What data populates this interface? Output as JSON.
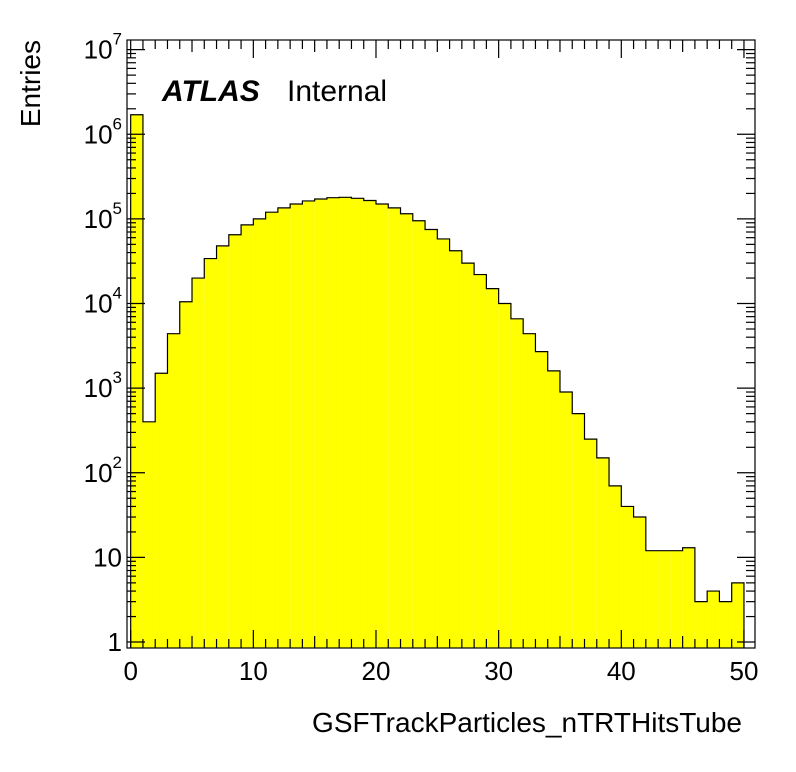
{
  "chart_data": {
    "type": "bar",
    "histogram": true,
    "title": "",
    "xlabel": "GSFTrackParticles_nTRTHitsTube",
    "ylabel": "Entries",
    "label_bold": "ATLAS",
    "label_normal": "Internal",
    "xlim": [
      -0.3,
      50.9
    ],
    "ylim": [
      0.85,
      13000000
    ],
    "yscale": "log",
    "fill_color": "#ffff00",
    "line_color": "#000000",
    "x_tick_labels": [
      "0",
      "10",
      "20",
      "30",
      "40",
      "50"
    ],
    "x_tick_values": [
      0,
      10,
      20,
      30,
      40,
      50
    ],
    "y_tick_labels": [
      {
        "value": 1,
        "base": "1",
        "exp": ""
      },
      {
        "value": 10,
        "base": "10",
        "exp": ""
      },
      {
        "value": 100,
        "base": "10",
        "exp": "2"
      },
      {
        "value": 1000,
        "base": "10",
        "exp": "3"
      },
      {
        "value": 10000,
        "base": "10",
        "exp": "4"
      },
      {
        "value": 100000,
        "base": "10",
        "exp": "5"
      },
      {
        "value": 1000000,
        "base": "10",
        "exp": "6"
      },
      {
        "value": 10000000,
        "base": "10",
        "exp": "7"
      }
    ],
    "bin_edges": [
      0,
      1,
      2,
      3,
      4,
      5,
      6,
      7,
      8,
      9,
      10,
      11,
      12,
      13,
      14,
      15,
      16,
      17,
      18,
      19,
      20,
      21,
      22,
      23,
      24,
      25,
      26,
      27,
      28,
      29,
      30,
      31,
      32,
      33,
      34,
      35,
      36,
      37,
      38,
      39,
      40,
      41,
      42,
      43,
      44,
      45,
      46,
      47,
      48,
      49,
      50
    ],
    "values": [
      1700000,
      400,
      1500,
      4400,
      10500,
      20000,
      34000,
      48000,
      65000,
      85000,
      100000,
      120000,
      135000,
      150000,
      163000,
      172000,
      178000,
      180000,
      175000,
      165000,
      150000,
      135000,
      115000,
      95000,
      75000,
      58000,
      42000,
      30000,
      22000,
      15000,
      10000,
      6600,
      4400,
      2700,
      1600,
      900,
      500,
      250,
      150,
      70,
      40,
      30,
      12,
      12,
      12,
      13,
      3,
      4,
      3,
      5
    ]
  }
}
